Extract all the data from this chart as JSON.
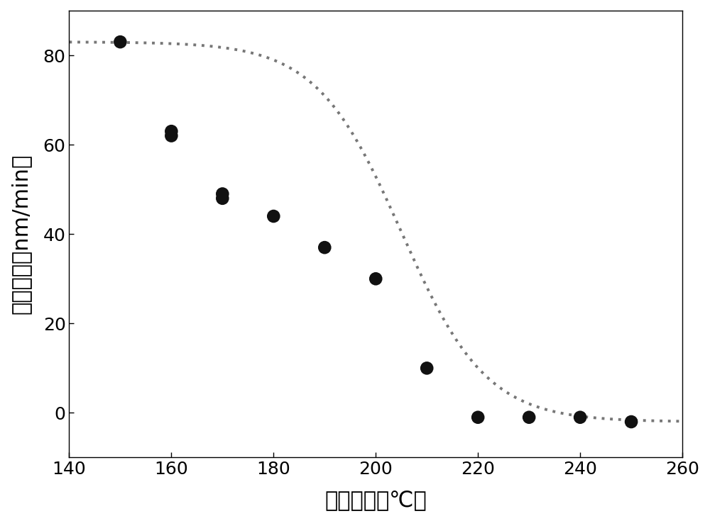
{
  "x_data": [
    150,
    160,
    160,
    170,
    170,
    180,
    190,
    200,
    210,
    220,
    230,
    240,
    250
  ],
  "y_data": [
    83,
    62,
    63,
    48,
    49,
    44,
    37,
    30,
    10,
    -1,
    -1,
    -1,
    -2
  ],
  "xlim": [
    140,
    260
  ],
  "ylim": [
    -10,
    90
  ],
  "xticks": [
    140,
    160,
    180,
    200,
    220,
    240,
    260
  ],
  "yticks": [
    0,
    20,
    40,
    60,
    80
  ],
  "xlabel": "固化温度（℃）",
  "ylabel": "溶解速率（nm/min）",
  "dot_color": "#111111",
  "line_color": "#777777",
  "dot_size": 180,
  "background_color": "#ffffff",
  "tick_fontsize": 18,
  "label_fontsize": 22
}
